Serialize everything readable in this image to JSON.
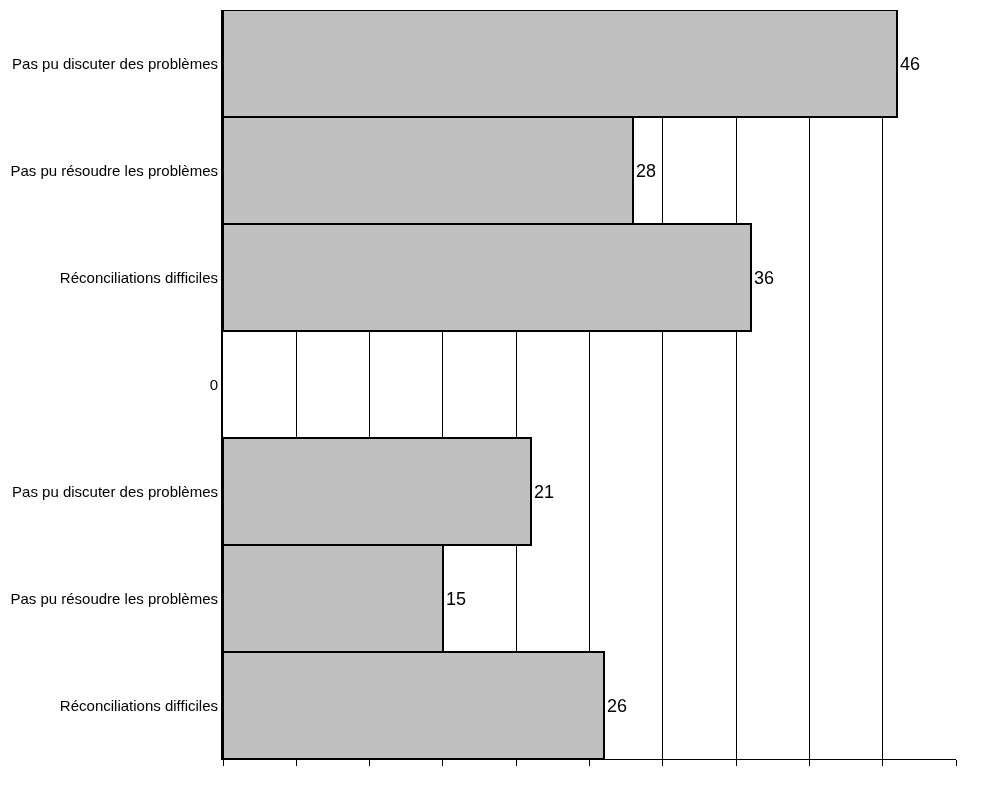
{
  "chart_data": {
    "type": "bar",
    "orientation": "horizontal",
    "categories": [
      "Pas pu discuter des problèmes",
      "Pas pu résoudre les problèmes",
      "Réconciliations difficiles",
      "0",
      "Pas pu discuter des problèmes",
      "Pas pu résoudre les problèmes",
      "Réconciliations difficiles"
    ],
    "values": [
      46,
      28,
      36,
      null,
      21,
      15,
      26
    ],
    "color": "#c0c0c0",
    "data_labels": true,
    "xlim": [
      0,
      50
    ],
    "xticks": [
      {
        "value": 0,
        "label": null
      },
      {
        "value": 5,
        "label": null
      },
      {
        "value": 10,
        "label": null
      },
      {
        "value": 15,
        "label": null
      },
      {
        "value": 20,
        "label": null
      },
      {
        "value": 25,
        "label": null
      },
      {
        "value": 30,
        "label": null
      },
      {
        "value": 35,
        "label": null
      },
      {
        "value": 40,
        "label": null
      },
      {
        "value": 45,
        "label": null
      },
      {
        "value": 50,
        "label": null
      }
    ],
    "grid": "x",
    "tick_labels": "y"
  }
}
